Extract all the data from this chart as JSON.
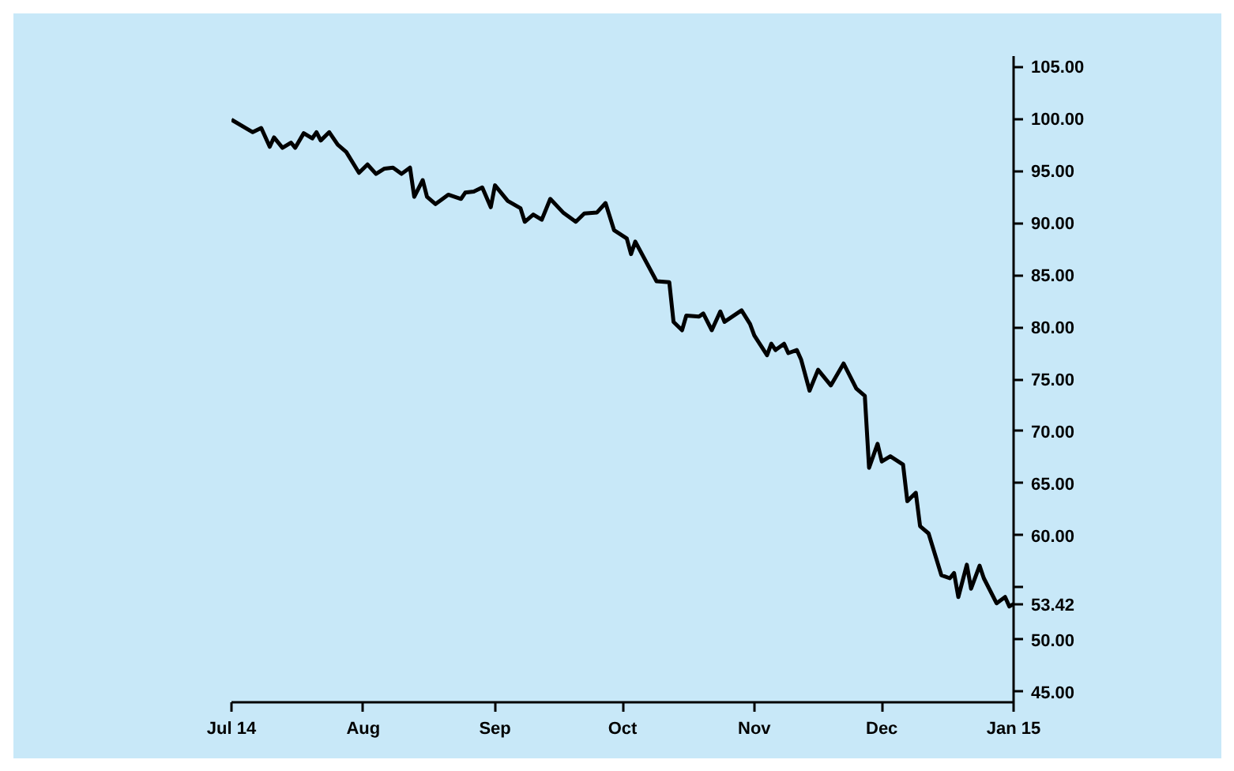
{
  "chart_data": {
    "type": "line",
    "x": [
      "2014-07-01",
      "2014-07-06",
      "2014-07-08",
      "2014-07-10",
      "2014-07-11",
      "2014-07-13",
      "2014-07-15",
      "2014-07-16",
      "2014-07-18",
      "2014-07-20",
      "2014-07-21",
      "2014-07-22",
      "2014-07-24",
      "2014-07-26",
      "2014-07-28",
      "2014-07-31",
      "2014-08-02",
      "2014-08-04",
      "2014-08-06",
      "2014-08-08",
      "2014-08-10",
      "2014-08-12",
      "2014-08-13",
      "2014-08-15",
      "2014-08-16",
      "2014-08-18",
      "2014-08-21",
      "2014-08-24",
      "2014-08-25",
      "2014-08-27",
      "2014-08-29",
      "2014-08-31",
      "2014-09-01",
      "2014-09-04",
      "2014-09-07",
      "2014-09-08",
      "2014-09-10",
      "2014-09-12",
      "2014-09-14",
      "2014-09-17",
      "2014-09-20",
      "2014-09-22",
      "2014-09-25",
      "2014-09-27",
      "2014-09-29",
      "2014-10-02",
      "2014-10-03",
      "2014-10-04",
      "2014-10-09",
      "2014-10-12",
      "2014-10-13",
      "2014-10-15",
      "2014-10-16",
      "2014-10-19",
      "2014-10-20",
      "2014-10-22",
      "2014-10-24",
      "2014-10-25",
      "2014-10-29",
      "2014-10-31",
      "2014-11-01",
      "2014-11-04",
      "2014-11-05",
      "2014-11-06",
      "2014-11-08",
      "2014-11-09",
      "2014-11-11",
      "2014-11-12",
      "2014-11-14",
      "2014-11-16",
      "2014-11-19",
      "2014-11-22",
      "2014-11-25",
      "2014-11-27",
      "2014-11-28",
      "2014-11-30",
      "2014-12-01",
      "2014-12-03",
      "2014-12-06",
      "2014-12-07",
      "2014-12-09",
      "2014-12-10",
      "2014-12-12",
      "2014-12-15",
      "2014-12-17",
      "2014-12-18",
      "2014-12-19",
      "2014-12-21",
      "2014-12-22",
      "2014-12-24",
      "2014-12-25",
      "2014-12-28",
      "2014-12-30",
      "2014-12-31",
      "2015-01-01"
    ],
    "series": [
      {
        "color": "#000000",
        "values": [
          99.9,
          98.7,
          99.1,
          97.3,
          98.2,
          97.2,
          97.7,
          97.2,
          98.6,
          98.1,
          98.7,
          97.9,
          98.7,
          97.5,
          96.8,
          94.8,
          95.6,
          94.7,
          95.2,
          95.3,
          94.7,
          95.3,
          92.5,
          94.1,
          92.5,
          91.8,
          92.7,
          92.3,
          92.9,
          93.0,
          93.4,
          91.5,
          93.6,
          92.1,
          91.4,
          90.1,
          90.8,
          90.3,
          92.3,
          91.0,
          90.1,
          90.9,
          91.0,
          91.9,
          89.3,
          88.5,
          87.0,
          88.2,
          84.4,
          84.3,
          80.5,
          79.7,
          81.1,
          81.0,
          81.3,
          79.7,
          81.5,
          80.5,
          81.6,
          80.3,
          79.2,
          77.3,
          78.4,
          77.8,
          78.4,
          77.5,
          77.8,
          76.9,
          73.9,
          75.9,
          74.4,
          76.5,
          74.1,
          73.4,
          66.5,
          68.8,
          67.1,
          67.6,
          66.8,
          63.3,
          64.1,
          60.9,
          60.2,
          56.2,
          55.9,
          56.4,
          54.1,
          57.2,
          54.9,
          57.1,
          55.9,
          53.5,
          54.1,
          53.2,
          53.42
        ]
      }
    ],
    "xlim": [
      "2014-07-01",
      "2015-01-01"
    ],
    "xticks": [
      {
        "value": "2014-07-01",
        "label": "Jul 14"
      },
      {
        "value": "2014-08-01",
        "label": "Aug"
      },
      {
        "value": "2014-09-01",
        "label": "Sep"
      },
      {
        "value": "2014-10-01",
        "label": "Oct"
      },
      {
        "value": "2014-11-01",
        "label": "Nov"
      },
      {
        "value": "2014-12-01",
        "label": "Dec"
      },
      {
        "value": "2015-01-01",
        "label": "Jan 15"
      }
    ],
    "ylim": [
      44,
      106
    ],
    "yticks": [
      {
        "value": 45,
        "label": "45.00"
      },
      {
        "value": 50,
        "label": "50.00"
      },
      {
        "value": 53.42,
        "label": "53.42"
      },
      {
        "value": 55,
        "label": null
      },
      {
        "value": 60,
        "label": "60.00"
      },
      {
        "value": 65,
        "label": "65.00"
      },
      {
        "value": 70,
        "label": "70.00"
      },
      {
        "value": 75,
        "label": "75.00"
      },
      {
        "value": 80,
        "label": "80.00"
      },
      {
        "value": 85,
        "label": "85.00"
      },
      {
        "value": 90,
        "label": "90.00"
      },
      {
        "value": 95,
        "label": "95.00"
      },
      {
        "value": 100,
        "label": "100.00"
      },
      {
        "value": 105,
        "label": "105.00"
      }
    ],
    "grid": false,
    "marker": "none",
    "line_style": "solid"
  }
}
